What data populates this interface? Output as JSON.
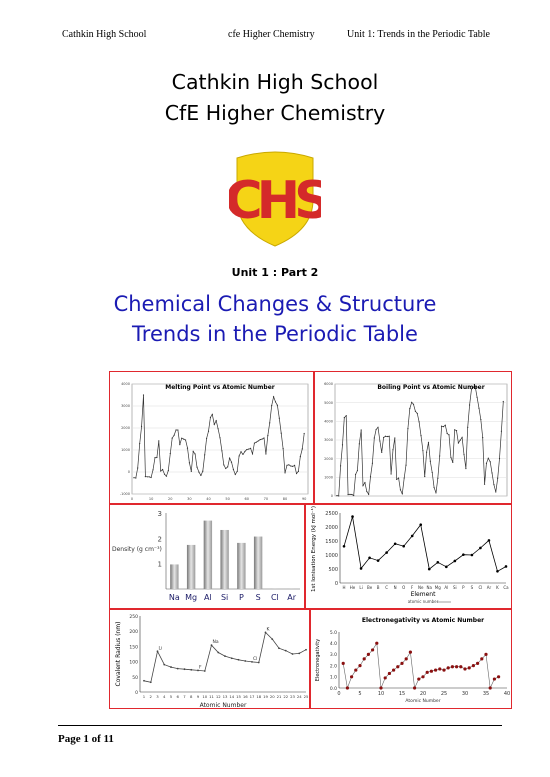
{
  "header": {
    "left": "Cathkin High School",
    "center": "cfe Higher Chemistry",
    "right": "Unit 1: Trends in the Periodic Table"
  },
  "title": {
    "line1": "Cathkin High School",
    "line2": "CfE Higher Chemistry"
  },
  "crest": {
    "letters": "CHS",
    "shield_color": "#f5d416",
    "letter_color": "#d42a2a"
  },
  "unit_line": "Unit 1 : Part 2",
  "subtitle": {
    "line1": "Chemical Changes & Structure",
    "line2": "Trends in the Periodic Table"
  },
  "footer": {
    "page": "Page 1 of 11"
  },
  "chart_data": [
    {
      "type": "line",
      "title": "Melting Point vs Atomic Number",
      "y_ticks": [
        "4000",
        "3000",
        "2000",
        "1000",
        "0",
        "-1000"
      ],
      "x_ticks": [
        "0",
        "10",
        "20",
        "30",
        "40",
        "50",
        "60",
        "70",
        "80",
        "90"
      ],
      "ylim": [
        -1000,
        4000
      ],
      "values": [
        -259,
        -272,
        181,
        1287,
        2076,
        3500,
        -210,
        -218,
        -220,
        -249,
        98,
        650,
        660,
        1414,
        44,
        115,
        -101,
        -189,
        64,
        842,
        1541,
        1668,
        1910,
        1907,
        1246,
        1538,
        1495,
        1455,
        1085,
        420,
        30,
        938,
        817,
        221,
        -7,
        -157,
        39,
        777,
        1526,
        1855,
        2477,
        2623,
        2157,
        2334,
        1964,
        1555,
        962,
        321,
        157,
        232,
        631,
        450,
        114,
        -112,
        28,
        727,
        920,
        798,
        931,
        1021,
        1042,
        1074,
        822,
        1313,
        1356,
        1412,
        1474,
        1497,
        1545,
        819,
        1652,
        2233,
        3017,
        3422,
        3186,
        3033,
        2446,
        1768,
        1064,
        -39,
        304,
        327,
        271,
        254,
        302,
        -71,
        27,
        700,
        1050,
        1750
      ]
    },
    {
      "type": "line",
      "title": "Boiling Point vs Atomic Number",
      "y_ticks": [
        "6000",
        "5000",
        "4000",
        "3000",
        "2000",
        "1000",
        "0"
      ],
      "ylim": [
        0,
        6000
      ],
      "values": [
        20,
        4,
        1615,
        2742,
        4200,
        4300,
        77,
        90,
        85,
        27,
        1156,
        1363,
        2792,
        3538,
        553,
        718,
        239,
        87,
        1032,
        1757,
        3109,
        3560,
        3680,
        2944,
        2334,
        3134,
        3200,
        3186,
        3200,
        1180,
        2477,
        3106,
        887,
        958,
        332,
        120,
        961,
        1655,
        3609,
        4682,
        5017,
        4912,
        4538,
        4423,
        3968,
        3236,
        2435,
        1040,
        2345,
        2875,
        1860,
        1261,
        457,
        165,
        944,
        2143,
        3737,
        3716,
        3793,
        3347,
        3273,
        2067,
        1802,
        3546,
        3503,
        2840,
        2993,
        3141,
        2223,
        1469,
        3675,
        4876,
        5731,
        5828,
        5869,
        5285,
        4701,
        4098,
        3129,
        630,
        1746,
        2022,
        1837,
        1235,
        610,
        211,
        950,
        2010,
        3471,
        5061
      ]
    },
    {
      "type": "bar",
      "categories": [
        "Na",
        "Mg",
        "Al",
        "Si",
        "P",
        "S",
        "Cl",
        "Ar"
      ],
      "values": [
        0.97,
        1.74,
        2.7,
        2.33,
        1.82,
        2.07,
        0.003,
        0.002
      ],
      "ylabel": "Density (g cm⁻³)",
      "y_ticks": [
        "3",
        "2",
        "1"
      ],
      "ylim": [
        0,
        3
      ]
    },
    {
      "type": "line",
      "categories": [
        "H",
        "He",
        "Li",
        "Be",
        "B",
        "C",
        "N",
        "O",
        "F",
        "Ne",
        "Na",
        "Mg",
        "Al",
        "Si",
        "P",
        "S",
        "Cl",
        "Ar",
        "K",
        "Ca"
      ],
      "values": [
        1312,
        2372,
        520,
        899,
        801,
        1086,
        1402,
        1314,
        1681,
        2081,
        496,
        738,
        578,
        787,
        1012,
        1000,
        1251,
        1521,
        419,
        590
      ],
      "ylabel": "1st Ionisation Energy (kJ mol⁻¹)",
      "xlabel": "Element",
      "xlabel2": "atomic number",
      "y_ticks": [
        "2500",
        "2000",
        "1500",
        "1000",
        "500",
        "0"
      ],
      "ylim": [
        0,
        2500
      ]
    },
    {
      "type": "line",
      "x": [
        1,
        2,
        3,
        4,
        5,
        6,
        7,
        8,
        9,
        10,
        11,
        12,
        13,
        14,
        15,
        16,
        17,
        18,
        19,
        20,
        21,
        22,
        23,
        24,
        25
      ],
      "values": [
        37,
        32,
        134,
        90,
        82,
        77,
        75,
        73,
        71,
        69,
        154,
        130,
        118,
        111,
        106,
        102,
        99,
        97,
        196,
        174,
        144,
        136,
        125,
        127,
        139
      ],
      "ylabel": "Covalent Radius (nm)",
      "xlabel": "Atomic Number",
      "x_ticks": [
        "1",
        "2",
        "3",
        "4",
        "5",
        "6",
        "7",
        "8",
        "9",
        "10",
        "11",
        "12",
        "13",
        "14",
        "15",
        "16",
        "17",
        "18",
        "19",
        "20",
        "21",
        "22",
        "23",
        "24",
        "25"
      ],
      "y_ticks": [
        "250",
        "200",
        "150",
        "100",
        "50",
        "0"
      ],
      "ylim": [
        0,
        250
      ],
      "point_labels": [
        {
          "x": 3,
          "label": "Li"
        },
        {
          "x": 9,
          "label": "F"
        },
        {
          "x": 11,
          "label": "Na"
        },
        {
          "x": 17,
          "label": "Cl"
        },
        {
          "x": 19,
          "label": "K"
        }
      ]
    },
    {
      "type": "line",
      "title": "Electronegativity vs Atomic Number",
      "x": [
        1,
        2,
        3,
        4,
        5,
        6,
        7,
        8,
        9,
        10,
        11,
        12,
        13,
        14,
        15,
        16,
        17,
        18,
        19,
        20,
        21,
        22,
        23,
        24,
        25,
        26,
        27,
        28,
        29,
        30,
        31,
        32,
        33,
        34,
        35,
        36,
        37,
        38
      ],
      "values": [
        2.2,
        0,
        1.0,
        1.6,
        2.0,
        2.6,
        3.0,
        3.4,
        4.0,
        0,
        0.9,
        1.3,
        1.6,
        1.9,
        2.2,
        2.6,
        3.2,
        0,
        0.8,
        1.0,
        1.4,
        1.5,
        1.6,
        1.7,
        1.6,
        1.8,
        1.9,
        1.9,
        1.9,
        1.7,
        1.8,
        2.0,
        2.2,
        2.6,
        3.0,
        0,
        0.8,
        1.0
      ],
      "ylabel": "Electronegativity",
      "xlabel": "Atomic Number",
      "x_ticks": [
        "0",
        "5",
        "10",
        "15",
        "20",
        "25",
        "30",
        "35",
        "40"
      ],
      "y_ticks": [
        "5.0",
        "4.0",
        "3.0",
        "2.0",
        "1.0",
        "0.0"
      ],
      "xlim": [
        0,
        40
      ],
      "ylim": [
        0,
        5
      ]
    }
  ]
}
